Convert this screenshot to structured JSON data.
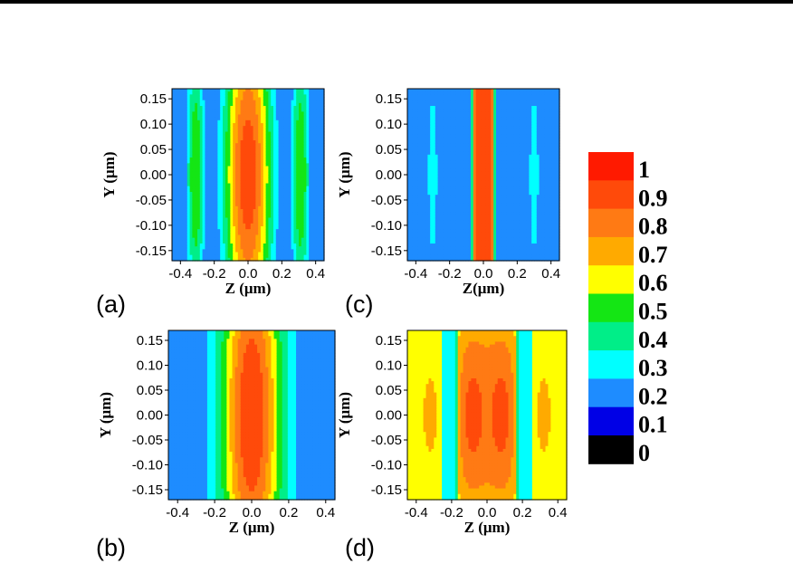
{
  "chart_data": {
    "type": "heatmap",
    "panels": [
      {
        "id": "a",
        "label": "(a)",
        "xlabel": "Z (μm)",
        "ylabel": "Y (μm)",
        "profile": "a"
      },
      {
        "id": "b",
        "label": "(b)",
        "xlabel": "Z (μm)",
        "ylabel": "Y (μm)",
        "profile": "b"
      },
      {
        "id": "c",
        "label": "(c)",
        "xlabel": "Z(μm)",
        "ylabel": "Y (μm)",
        "profile": "c"
      },
      {
        "id": "d",
        "label": "(d)",
        "xlabel": "Z (μm)",
        "ylabel": "Y (μm)",
        "profile": "d"
      }
    ],
    "xlim": [
      -0.45,
      0.45
    ],
    "ylim": [
      -0.17,
      0.17
    ],
    "xticks": [
      "-0.4",
      "-0.2",
      "0.0",
      "0.2",
      "0.4"
    ],
    "xtick_values": [
      -0.4,
      -0.2,
      0.0,
      0.2,
      0.4
    ],
    "yticks": [
      "0.15",
      "0.10",
      "0.05",
      "0.00",
      "-0.05",
      "-0.10",
      "-0.15"
    ],
    "ytick_values": [
      0.15,
      0.1,
      0.05,
      0.0,
      -0.05,
      -0.1,
      -0.15
    ],
    "colorbar": {
      "labels": [
        "1",
        "0.9",
        "0.8",
        "0.7",
        "0.6",
        "0.5",
        "0.4",
        "0.3",
        "0.2",
        "0.1",
        "0"
      ],
      "colors": [
        "#ff1a00",
        "#ff4a0a",
        "#ff7a14",
        "#ffaa00",
        "#ffff00",
        "#14e614",
        "#00ee88",
        "#00ffff",
        "#1e8cff",
        "#0000e6",
        "#000000"
      ]
    }
  }
}
